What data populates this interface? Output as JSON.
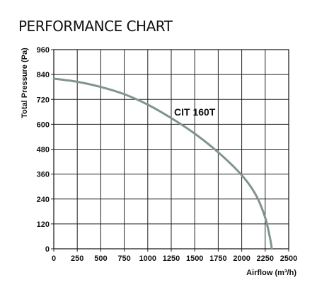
{
  "chart_data": {
    "type": "line",
    "title": "PERFORMANCE CHART",
    "xlabel": "Airflow (m³/h)",
    "ylabel": "Total Pressure (Pa)",
    "xlim": [
      0,
      2500
    ],
    "ylim": [
      0,
      960
    ],
    "x_ticks": [
      0,
      250,
      500,
      750,
      1000,
      1250,
      1500,
      1750,
      2000,
      2250,
      2500
    ],
    "y_ticks": [
      0,
      120,
      240,
      360,
      480,
      600,
      720,
      840,
      960
    ],
    "grid": true,
    "series": [
      {
        "name": "CIT 160T",
        "color": "#7f958d",
        "x": [
          0,
          250,
          500,
          750,
          1000,
          1250,
          1500,
          1750,
          2000,
          2150,
          2250,
          2300,
          2320
        ],
        "y": [
          820,
          805,
          780,
          745,
          695,
          630,
          555,
          465,
          355,
          260,
          150,
          55,
          0
        ]
      }
    ]
  }
}
